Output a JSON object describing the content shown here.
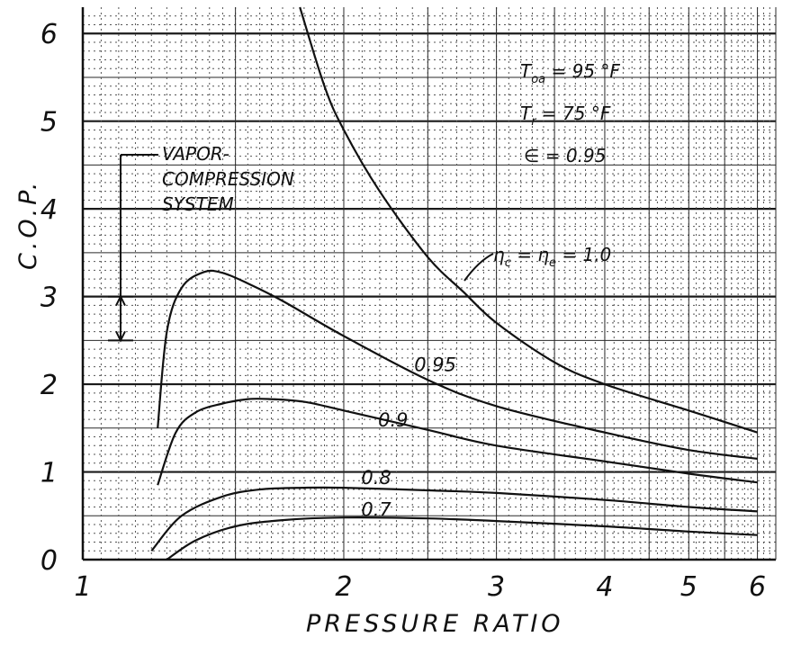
{
  "chart_data": {
    "type": "line",
    "title": "",
    "xlabel": "PRESSURE RATIO",
    "ylabel": "C.O.P.",
    "x_scale": "log",
    "xlim": [
      1,
      6.3
    ],
    "ylim": [
      0,
      6.3
    ],
    "x_ticks": [
      1,
      2,
      3,
      4,
      5,
      6
    ],
    "x_tick_labels": [
      "1",
      "2",
      "3",
      "4",
      "5",
      "6"
    ],
    "y_ticks": [
      0,
      1,
      2,
      3,
      4,
      5,
      6
    ],
    "y_tick_labels": [
      "0",
      "1",
      "2",
      "3",
      "4",
      "5",
      "6"
    ],
    "grid": true,
    "annotations": {
      "t_line1_main": "T",
      "t_line1_sub": "oa",
      "t_line1_rest": " = 95 °F",
      "t_line2_main": "T",
      "t_line2_sub": "r",
      "t_line2_rest": " = 75 °F",
      "eps_line": "∈ = 0.95",
      "eta_label": "η",
      "eta_sub1": "c",
      "eta_mid": " = η",
      "eta_sub2": "e",
      "eta_rest": " = 1.0",
      "vapor_line1": "VAPOR-",
      "vapor_line2": "COMPRESSION",
      "vapor_line3": "SYSTEM",
      "vapor_range": [
        2.5,
        3.0
      ]
    },
    "series": [
      {
        "name": "1.0",
        "x": [
          1.78,
          1.9,
          2.0,
          2.2,
          2.5,
          2.75,
          3.0,
          3.5,
          4.0,
          5.0,
          6.0
        ],
        "y": [
          6.3,
          5.4,
          4.9,
          4.2,
          3.45,
          3.05,
          2.7,
          2.25,
          2.0,
          1.7,
          1.45
        ]
      },
      {
        "name": "0.95",
        "x": [
          1.22,
          1.25,
          1.3,
          1.38,
          1.45,
          1.55,
          1.7,
          2.0,
          2.5,
          3.0,
          4.0,
          5.0,
          6.0
        ],
        "y": [
          1.5,
          2.6,
          3.1,
          3.28,
          3.27,
          3.15,
          2.95,
          2.55,
          2.05,
          1.75,
          1.45,
          1.25,
          1.15
        ]
      },
      {
        "name": "0.9",
        "x": [
          1.22,
          1.28,
          1.35,
          1.45,
          1.55,
          1.65,
          1.8,
          2.0,
          2.5,
          3.0,
          4.0,
          5.0,
          6.0
        ],
        "y": [
          0.85,
          1.45,
          1.68,
          1.78,
          1.83,
          1.83,
          1.8,
          1.7,
          1.48,
          1.3,
          1.12,
          0.98,
          0.88
        ]
      },
      {
        "name": "0.8",
        "x": [
          1.2,
          1.3,
          1.45,
          1.6,
          1.8,
          2.0,
          2.5,
          3.0,
          4.0,
          5.0,
          6.0
        ],
        "y": [
          0.1,
          0.5,
          0.72,
          0.8,
          0.82,
          0.82,
          0.79,
          0.76,
          0.68,
          0.6,
          0.55
        ]
      },
      {
        "name": "0.7",
        "x": [
          1.25,
          1.35,
          1.5,
          1.7,
          2.0,
          2.5,
          3.0,
          4.0,
          5.0,
          6.0
        ],
        "y": [
          0.0,
          0.22,
          0.38,
          0.45,
          0.48,
          0.47,
          0.44,
          0.38,
          0.32,
          0.28
        ]
      }
    ],
    "curve_labels": [
      {
        "text": "0.95",
        "x": 2.55,
        "y": 2.15
      },
      {
        "text": "0.9",
        "x": 2.28,
        "y": 1.52
      },
      {
        "text": "0.8",
        "x": 2.18,
        "y": 0.86
      },
      {
        "text": "0.7",
        "x": 2.18,
        "y": 0.5
      }
    ]
  }
}
